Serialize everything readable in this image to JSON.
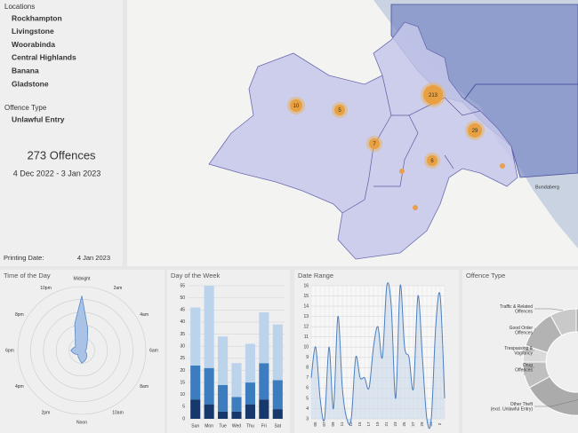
{
  "sidebar": {
    "locations_heading": "Locations",
    "locations": [
      "Rockhampton",
      "Livingstone",
      "Woorabinda",
      "Central Highlands",
      "Banana",
      "Gladstone"
    ],
    "offence_heading": "Offence Type",
    "offence": "Unlawful Entry",
    "total": "273 Offences",
    "period": "4 Dec 2022 - 3 Jan 2023",
    "printing_label": "Printing Date:",
    "printing_date": "4 Jan 2023"
  },
  "map": {
    "clusters": [
      "213",
      "29",
      "10",
      "5",
      "7",
      "6"
    ],
    "place": "Bundaberg"
  },
  "chart_data": [
    {
      "type": "polar",
      "title": "Time of the Day",
      "categories": [
        "Midnight",
        null,
        "2am",
        null,
        "4am",
        null,
        "6am",
        null,
        "8am",
        null,
        "10am",
        null,
        "Noon",
        null,
        "2pm",
        null,
        "4pm",
        null,
        "6pm",
        null,
        "8pm",
        null,
        "10pm",
        null
      ],
      "values": [
        60,
        25,
        12,
        8,
        6,
        5,
        4,
        4,
        6,
        8,
        10,
        12,
        14,
        10,
        8,
        6,
        8,
        10,
        12,
        10,
        8,
        10,
        14,
        30
      ],
      "rlim": [
        0,
        70
      ],
      "color": "#a9c2e6"
    },
    {
      "type": "bar",
      "title": "Day of the Week",
      "stacked": true,
      "categories": [
        "Sun",
        "Mon",
        "Tue",
        "Wed",
        "Thu",
        "Fri",
        "Sat"
      ],
      "series": [
        {
          "color": "#17386b",
          "values": [
            8,
            6,
            3,
            3,
            6,
            8,
            4
          ]
        },
        {
          "color": "#3b7dbf",
          "values": [
            14,
            15,
            11,
            6,
            9,
            15,
            12
          ]
        },
        {
          "color": "#bcd3ec",
          "values": [
            24,
            34,
            20,
            14,
            16,
            21,
            23
          ]
        }
      ],
      "ylim": [
        0,
        55
      ],
      "yticks": [
        0,
        5,
        10,
        15,
        20,
        25,
        30,
        35,
        40,
        45,
        50,
        55
      ],
      "grid": true
    },
    {
      "type": "line",
      "title": "Date Range",
      "categories": [
        null,
        "05",
        null,
        "07",
        null,
        "09",
        null,
        "11",
        null,
        "13",
        null,
        "15",
        null,
        "17",
        null,
        "19",
        null,
        "21",
        null,
        "23",
        null,
        "25",
        null,
        "27",
        null,
        "29",
        null,
        "31",
        null,
        "2",
        null
      ],
      "values": [
        7,
        10,
        5,
        3,
        10,
        4,
        13,
        6,
        3,
        3,
        9,
        7,
        7,
        6,
        10,
        12,
        9,
        16,
        14,
        5,
        16,
        10,
        9,
        6,
        15,
        9,
        3,
        3,
        12,
        15,
        5
      ],
      "ylim": [
        3,
        16
      ],
      "yticks": [
        3,
        4,
        5,
        6,
        7,
        8,
        9,
        10,
        11,
        12,
        13,
        14,
        15,
        16
      ],
      "grid": true,
      "color": "#4a7fbf"
    },
    {
      "type": "pie",
      "title": "Offence Type",
      "donut": true,
      "labels": [
        [
          "Traffic & Related",
          "Offences"
        ],
        [
          "Good Order",
          "Offences"
        ],
        [
          "Trespassing &",
          "Vagrancy"
        ],
        [
          "Drug",
          "Offences"
        ],
        [
          "Other Theft",
          "(excl. Unlawful Entry)"
        ]
      ],
      "values": [
        8,
        12,
        5,
        8,
        67
      ],
      "colors": [
        "#c9c9c9",
        "#b3b3b3",
        "#dadada",
        "#bfbfbf",
        "#ababab"
      ]
    }
  ]
}
